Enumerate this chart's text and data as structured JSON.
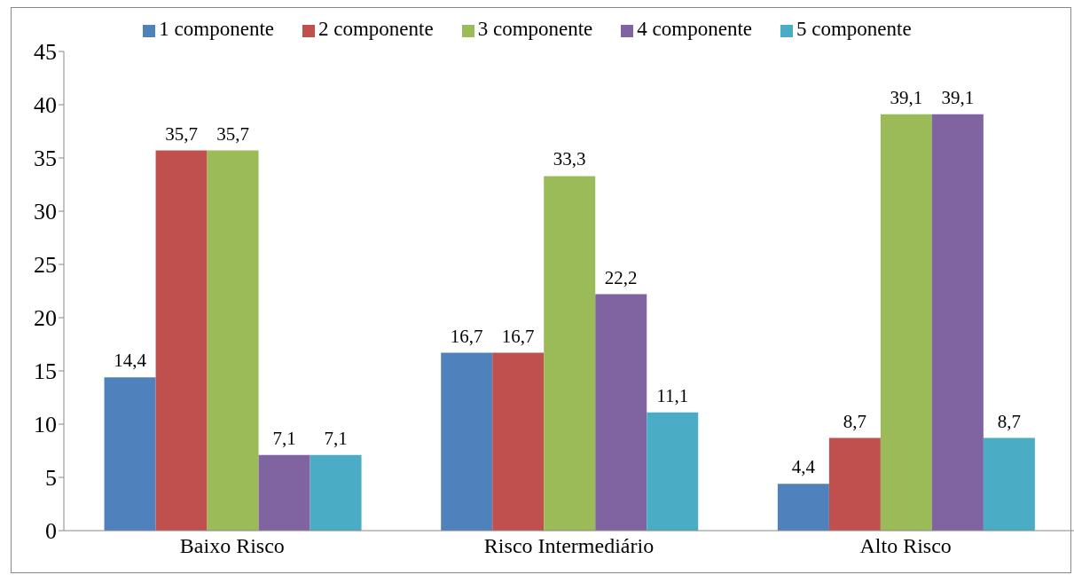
{
  "chart_data": {
    "type": "bar",
    "categories": [
      "Baixo Risco",
      "Risco Intermediário",
      "Alto Risco"
    ],
    "series": [
      {
        "name": "1 componente",
        "color": "#4f81bd",
        "values": [
          14.4,
          16.7,
          4.4
        ],
        "value_labels": [
          "14,4",
          "16,7",
          "4,4"
        ]
      },
      {
        "name": "2 componente",
        "color": "#c0504d",
        "values": [
          35.7,
          16.7,
          8.7
        ],
        "value_labels": [
          "35,7",
          "16,7",
          "8,7"
        ]
      },
      {
        "name": "3 componente",
        "color": "#9bbb59",
        "values": [
          35.7,
          33.3,
          39.1
        ],
        "value_labels": [
          "35,7",
          "33,3",
          "39,1"
        ]
      },
      {
        "name": "4 componente",
        "color": "#8064a2",
        "values": [
          7.1,
          22.2,
          39.1
        ],
        "value_labels": [
          "7,1",
          "22,2",
          "39,1"
        ]
      },
      {
        "name": "5 componente",
        "color": "#4bacc6",
        "values": [
          7.1,
          11.1,
          8.7
        ],
        "value_labels": [
          "7,1",
          "11,1",
          "8,7"
        ]
      }
    ],
    "ylim": [
      0,
      45
    ],
    "yticks": [
      0,
      5,
      10,
      15,
      20,
      25,
      30,
      35,
      40,
      45
    ],
    "legend": "top"
  }
}
